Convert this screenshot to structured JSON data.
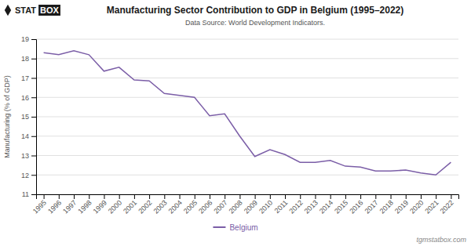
{
  "chart_data": {
    "type": "line",
    "title": "Manufacturing Sector Contribution to GDP in Belgium (1995–2022)",
    "subtitle": "Data Source: World Development Indicators.",
    "y_label": "Manufacturing (% of GDP)",
    "annotations": [
      "STAT",
      "BOX",
      "tgmstatbox.com"
    ],
    "x": [
      1995,
      1996,
      1997,
      1998,
      1999,
      2000,
      2001,
      2002,
      2003,
      2004,
      2005,
      2006,
      2007,
      2008,
      2009,
      2010,
      2011,
      2012,
      2013,
      2014,
      2015,
      2016,
      2017,
      2018,
      2019,
      2020,
      2021,
      2022
    ],
    "series": [
      {
        "name": "Belgium",
        "color": "#7B5EA7",
        "values": [
          18.3,
          18.2,
          18.4,
          18.2,
          17.35,
          17.55,
          16.9,
          16.85,
          16.2,
          16.1,
          16.0,
          15.05,
          15.15,
          14.0,
          12.95,
          13.3,
          13.05,
          12.65,
          12.65,
          12.75,
          12.45,
          12.4,
          12.2,
          12.2,
          12.25,
          12.1,
          12.0,
          12.65
        ]
      }
    ],
    "xlim": [
      1994.5,
      2022.5
    ],
    "xticks": [
      1995,
      1996,
      1997,
      1998,
      1999,
      2000,
      2001,
      2002,
      2003,
      2004,
      2005,
      2006,
      2007,
      2008,
      2009,
      2010,
      2011,
      2012,
      2013,
      2014,
      2015,
      2016,
      2017,
      2018,
      2019,
      2020,
      2021,
      2022
    ],
    "ylim": [
      11,
      19
    ],
    "yticks": [
      11,
      12,
      13,
      14,
      15,
      16,
      17,
      18,
      19
    ],
    "grid": true,
    "legend": "bottom"
  }
}
